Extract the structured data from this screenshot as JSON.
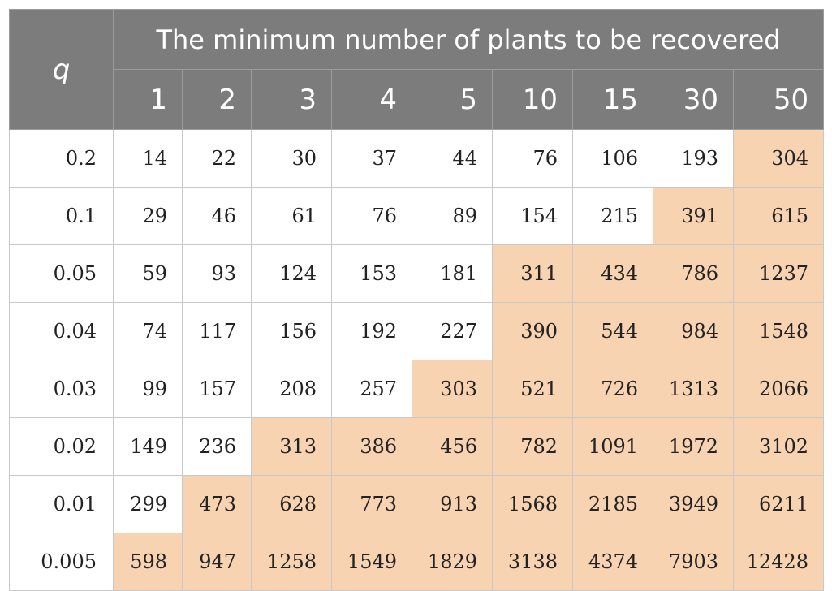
{
  "table": {
    "q_label": "q",
    "span_label": "The minimum number of plants to be recovered",
    "columns": [
      "1",
      "2",
      "3",
      "4",
      "5",
      "10",
      "15",
      "30",
      "50"
    ],
    "highlight_color": "#f8d3b1",
    "header_color": "#7b7c7b",
    "rows": [
      {
        "q": "0.2",
        "values": [
          "14",
          "22",
          "30",
          "37",
          "44",
          "76",
          "106",
          "193",
          "304"
        ],
        "highlight_from": 8
      },
      {
        "q": "0.1",
        "values": [
          "29",
          "46",
          "61",
          "76",
          "89",
          "154",
          "215",
          "391",
          "615"
        ],
        "highlight_from": 7
      },
      {
        "q": "0.05",
        "values": [
          "59",
          "93",
          "124",
          "153",
          "181",
          "311",
          "434",
          "786",
          "1237"
        ],
        "highlight_from": 5
      },
      {
        "q": "0.04",
        "values": [
          "74",
          "117",
          "156",
          "192",
          "227",
          "390",
          "544",
          "984",
          "1548"
        ],
        "highlight_from": 5
      },
      {
        "q": "0.03",
        "values": [
          "99",
          "157",
          "208",
          "257",
          "303",
          "521",
          "726",
          "1313",
          "2066"
        ],
        "highlight_from": 4
      },
      {
        "q": "0.02",
        "values": [
          "149",
          "236",
          "313",
          "386",
          "456",
          "782",
          "1091",
          "1972",
          "3102"
        ],
        "highlight_from": 2
      },
      {
        "q": "0.01",
        "values": [
          "299",
          "473",
          "628",
          "773",
          "913",
          "1568",
          "2185",
          "3949",
          "6211"
        ],
        "highlight_from": 1
      },
      {
        "q": "0.005",
        "values": [
          "598",
          "947",
          "1258",
          "1549",
          "1829",
          "3138",
          "4374",
          "7903",
          "12428"
        ],
        "highlight_from": 0
      }
    ]
  }
}
